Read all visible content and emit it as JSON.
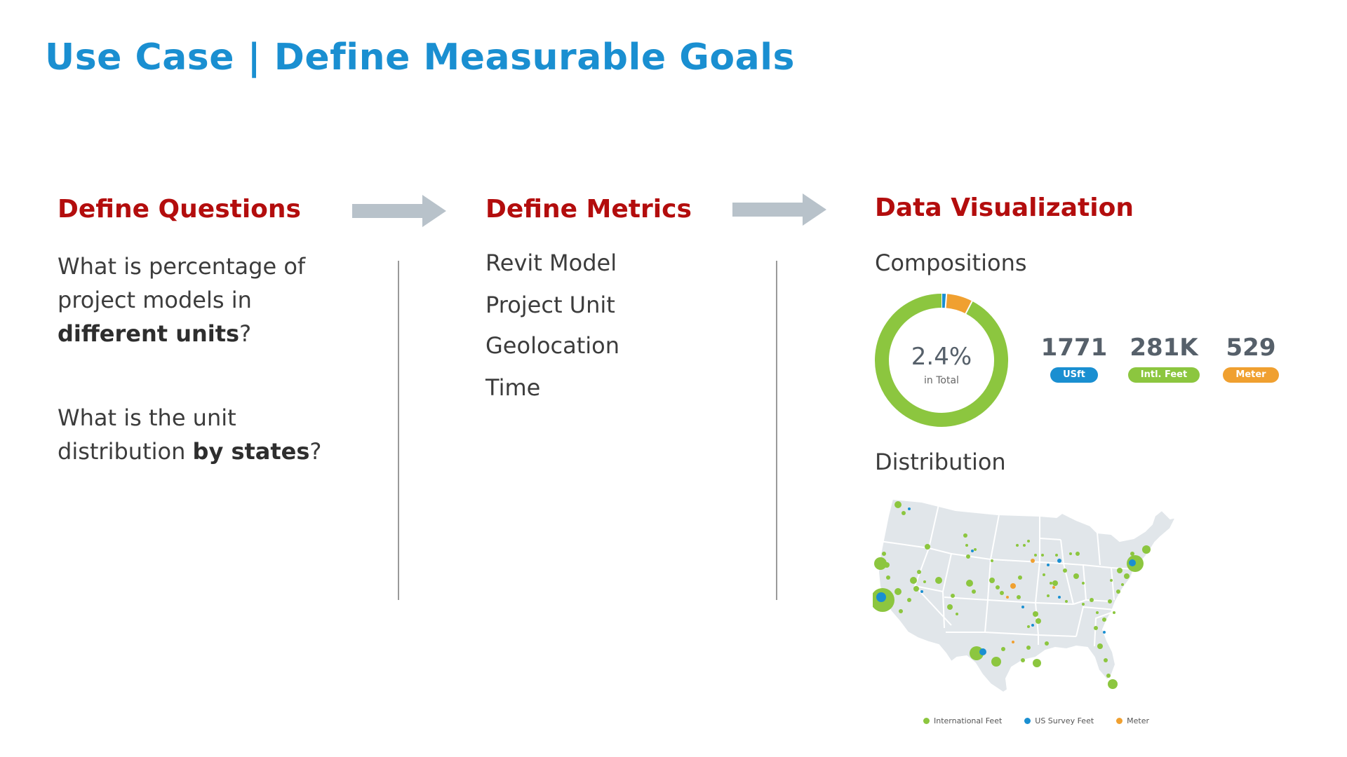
{
  "title": "Use Case | Define Measurable Goals",
  "columns": {
    "questions": {
      "heading": "Define Questions",
      "q1": {
        "a": "What is percentage of project models in ",
        "b": "different units",
        "c": "?"
      },
      "q2": {
        "a": "What is the unit distribution ",
        "b": "by states",
        "c": "?"
      }
    },
    "metrics": {
      "heading": "Define Metrics",
      "items": [
        "Revit Model",
        "Project Unit",
        "Geolocation",
        "Time"
      ]
    },
    "visualization": {
      "heading": "Data Visualization",
      "compositions_label": "Compositions",
      "distribution_label": "Distribution"
    }
  },
  "colors": {
    "title": "#1a8fd1",
    "heading": "#b30d0d",
    "international_feet": "#8cc63f",
    "us_survey_feet": "#1a8fd1",
    "meter": "#f0a030",
    "arrow": "#b8c2ca",
    "map_land": "#e1e6ea"
  },
  "icons": {
    "arrow1": "right-arrow-icon",
    "arrow2": "right-arrow-icon"
  },
  "chart_data": [
    {
      "type": "pie",
      "style": "donut",
      "center_value": "2.4%",
      "center_label": "in Total",
      "slices": [
        {
          "key": "us_survey_feet",
          "fraction": 0.012,
          "color": "#1a8fd1"
        },
        {
          "key": "meter",
          "fraction": 0.064,
          "color": "#f0a030"
        },
        {
          "key": "international_feet",
          "fraction": 0.924,
          "color": "#8cc63f"
        }
      ],
      "stats": [
        {
          "value": "1771",
          "label": "USft",
          "color": "#1a8fd1"
        },
        {
          "value": "281K",
          "label": "Intl. Feet",
          "color": "#8cc63f"
        },
        {
          "value": "529",
          "label": "Meter",
          "color": "#f0a030"
        }
      ]
    },
    {
      "type": "scatter",
      "style": "bubble map of US states",
      "legend": [
        {
          "label": "International Feet",
          "color": "#8cc63f"
        },
        {
          "label": "US Survey Feet",
          "color": "#1a8fd1"
        },
        {
          "label": "Meter",
          "color": "#f0a030"
        }
      ],
      "legend_position": "bottom"
    }
  ]
}
